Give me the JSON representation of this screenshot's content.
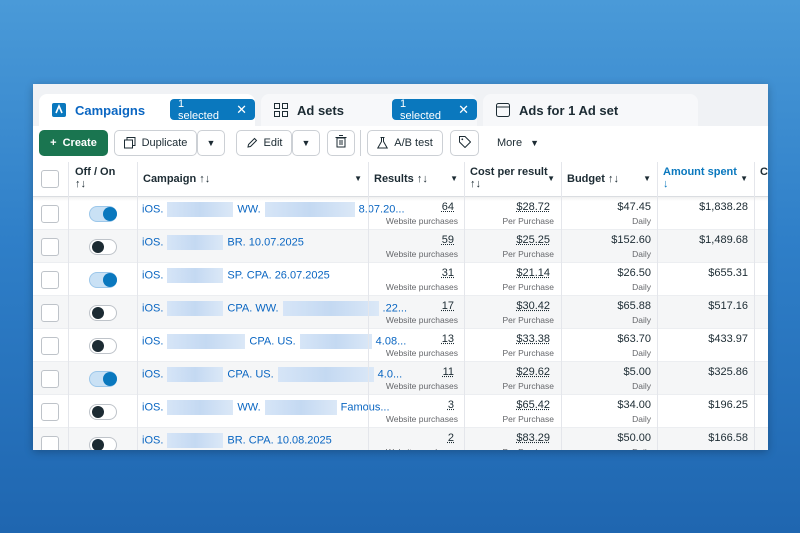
{
  "tabs": [
    {
      "label": "Campaigns",
      "selected_chip": "1 selected"
    },
    {
      "label": "Ad sets",
      "selected_chip": "1 selected"
    },
    {
      "label": "Ads for 1 Ad set"
    }
  ],
  "toolbar": {
    "create": "Create",
    "duplicate": "Duplicate",
    "edit": "Edit",
    "ab_test": "A/B test",
    "more": "More"
  },
  "columns": {
    "off_on": "Off / On",
    "campaign": "Campaign",
    "results": "Results",
    "cost_per_result": "Cost per result",
    "budget": "Budget",
    "amount_spent": "Amount spent",
    "cut": "C"
  },
  "rows": [
    {
      "on": true,
      "c1": "iOS.",
      "c2": "WW.",
      "c3": "8.07.20...",
      "results": "64",
      "results_sub": "Website purchases",
      "cpr": "$28.72",
      "cpr_sub": "Per Purchase",
      "budget": "$47.45",
      "budget_sub": "Daily",
      "spent": "$1,838.28"
    },
    {
      "on": false,
      "c1": "iOS.",
      "c2": "BR. 10.07.2025",
      "c3": "",
      "results": "59",
      "results_sub": "Website purchases",
      "cpr": "$25.25",
      "cpr_sub": "Per Purchase",
      "budget": "$152.60",
      "budget_sub": "Daily",
      "spent": "$1,489.68"
    },
    {
      "on": true,
      "c1": "iOS.",
      "c2": "SP. CPA. 26.07.2025",
      "c3": "",
      "results": "31",
      "results_sub": "Website purchases",
      "cpr": "$21.14",
      "cpr_sub": "Per Purchase",
      "budget": "$26.50",
      "budget_sub": "Daily",
      "spent": "$655.31"
    },
    {
      "on": false,
      "c1": "iOS.",
      "c2": "CPA. WW.",
      "c3": ".22...",
      "results": "17",
      "results_sub": "Website purchases",
      "cpr": "$30.42",
      "cpr_sub": "Per Purchase",
      "budget": "$65.88",
      "budget_sub": "Daily",
      "spent": "$517.16"
    },
    {
      "on": false,
      "c1": "iOS.",
      "c2": "CPA. US.",
      "c3": "4.08...",
      "results": "13",
      "results_sub": "Website purchases",
      "cpr": "$33.38",
      "cpr_sub": "Per Purchase",
      "budget": "$63.70",
      "budget_sub": "Daily",
      "spent": "$433.97"
    },
    {
      "on": true,
      "c1": "iOS.",
      "c2": "CPA. US.",
      "c3": "4.0...",
      "results": "11",
      "results_sub": "Website purchases",
      "cpr": "$29.62",
      "cpr_sub": "Per Purchase",
      "budget": "$5.00",
      "budget_sub": "Daily",
      "spent": "$325.86"
    },
    {
      "on": false,
      "c1": "iOS.",
      "c2": "WW.",
      "c3": "Famous...",
      "results": "3",
      "results_sub": "Website purchases",
      "cpr": "$65.42",
      "cpr_sub": "Per Purchase",
      "budget": "$34.00",
      "budget_sub": "Daily",
      "spent": "$196.25"
    },
    {
      "on": false,
      "c1": "iOS.",
      "c2": "BR. CPA. 10.08.2025",
      "c3": "",
      "results": "2",
      "results_sub": "Website purchases",
      "cpr": "$83.29",
      "cpr_sub": "Per Purchase",
      "budget": "$50.00",
      "budget_sub": "Daily",
      "spent": "$166.58"
    }
  ],
  "colors": {
    "accent": "#0a78be",
    "create": "#1a7550",
    "link": "#0a66c2"
  }
}
